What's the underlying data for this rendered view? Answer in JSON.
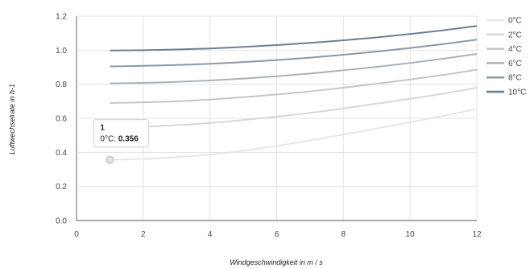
{
  "chart_data": {
    "type": "line",
    "xlabel": "Windgeschwindigkeit in m / s",
    "ylabel": "Luftwechselrate in h-1",
    "xlim": [
      0,
      12
    ],
    "ylim": [
      0,
      1.2
    ],
    "x_ticks": [
      "0",
      "2",
      "4",
      "6",
      "8",
      "10",
      "12"
    ],
    "y_ticks": [
      "0.0",
      "0.2",
      "0.4",
      "0.6",
      "0.8",
      "1.0",
      "1.2"
    ],
    "grid": true,
    "legend_position": "right",
    "series": [
      {
        "name": "0°C",
        "color": "#e6e6e6",
        "x": [
          1,
          2,
          3,
          4,
          5,
          6,
          7,
          8,
          9,
          10,
          11,
          12
        ],
        "y": [
          0.356,
          0.362,
          0.372,
          0.388,
          0.41,
          0.438,
          0.47,
          0.505,
          0.54,
          0.577,
          0.615,
          0.655
        ]
      },
      {
        "name": "2°C",
        "color": "#d8d8d8",
        "x": [
          1,
          2,
          3,
          4,
          5,
          6,
          7,
          8,
          9,
          10,
          11,
          12
        ],
        "y": [
          0.545,
          0.55,
          0.56,
          0.572,
          0.59,
          0.61,
          0.632,
          0.658,
          0.686,
          0.715,
          0.745,
          0.78
        ]
      },
      {
        "name": "4°C",
        "color": "#c6c6c6",
        "x": [
          1,
          2,
          3,
          4,
          5,
          6,
          7,
          8,
          9,
          10,
          11,
          12
        ],
        "y": [
          0.69,
          0.694,
          0.7,
          0.71,
          0.724,
          0.74,
          0.758,
          0.78,
          0.803,
          0.828,
          0.855,
          0.885
        ]
      },
      {
        "name": "6°C",
        "color": "#a9b3bb",
        "x": [
          1,
          2,
          3,
          4,
          5,
          6,
          7,
          8,
          9,
          10,
          11,
          12
        ],
        "y": [
          0.805,
          0.808,
          0.814,
          0.822,
          0.833,
          0.847,
          0.863,
          0.882,
          0.902,
          0.925,
          0.95,
          0.978
        ]
      },
      {
        "name": "8°C",
        "color": "#8a99a6",
        "x": [
          1,
          2,
          3,
          4,
          5,
          6,
          7,
          8,
          9,
          10,
          11,
          12
        ],
        "y": [
          0.905,
          0.908,
          0.913,
          0.92,
          0.93,
          0.942,
          0.956,
          0.973,
          0.992,
          1.013,
          1.036,
          1.062
        ]
      },
      {
        "name": "10°C",
        "color": "#6d7f8f",
        "x": [
          1,
          2,
          3,
          4,
          5,
          6,
          7,
          8,
          9,
          10,
          11,
          12
        ],
        "y": [
          0.998,
          1.0,
          1.004,
          1.01,
          1.019,
          1.03,
          1.043,
          1.058,
          1.075,
          1.095,
          1.117,
          1.142
        ]
      }
    ],
    "tooltip": {
      "title": "1",
      "series_label": "0°C: ",
      "value": "0.356",
      "x": 1,
      "y": 0.356
    }
  }
}
